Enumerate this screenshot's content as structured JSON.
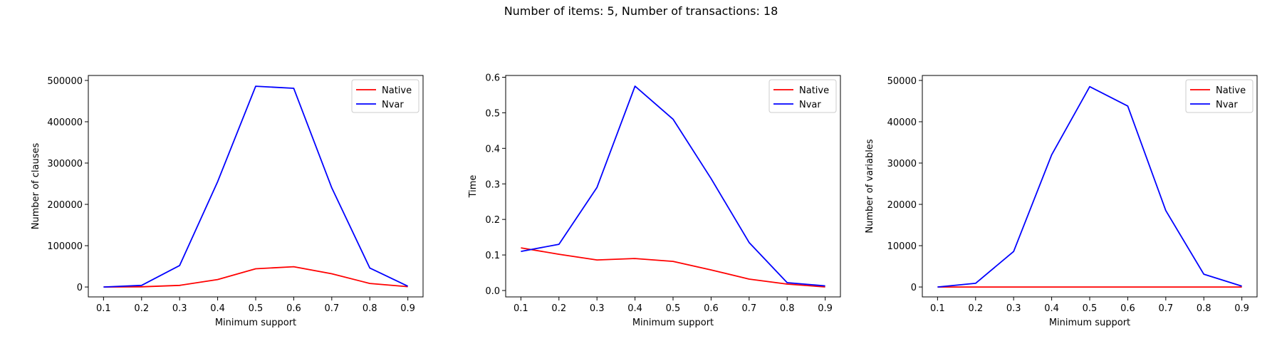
{
  "figure": {
    "title": "Number of items: 5, Number of transactions: 18"
  },
  "chart_data": [
    {
      "type": "line",
      "xlabel": "Minimum support",
      "ylabel": "Number of clauses",
      "x": [
        0.1,
        0.2,
        0.3,
        0.4,
        0.5,
        0.6,
        0.7,
        0.8,
        0.9
      ],
      "xticks": [
        "0.1",
        "0.2",
        "0.3",
        "0.4",
        "0.5",
        "0.6",
        "0.7",
        "0.8",
        "0.9"
      ],
      "yticks": [
        "0",
        "100000",
        "200000",
        "300000",
        "400000",
        "500000"
      ],
      "ytick_values": [
        0,
        100000,
        200000,
        300000,
        400000,
        500000
      ],
      "ylim": [
        -24000,
        512000
      ],
      "xlim": [
        0.06,
        0.94
      ],
      "legend": "top-right",
      "series": [
        {
          "name": "Native",
          "color": "#ff0000",
          "values": [
            0,
            500,
            4000,
            18000,
            44000,
            49000,
            32000,
            8500,
            800
          ]
        },
        {
          "name": "Nvar",
          "color": "#0000ff",
          "values": [
            0,
            4000,
            52000,
            255000,
            486000,
            481000,
            240000,
            46000,
            2000
          ]
        }
      ]
    },
    {
      "type": "line",
      "xlabel": "Minimum support",
      "ylabel": "Time",
      "x": [
        0.1,
        0.2,
        0.3,
        0.4,
        0.5,
        0.6,
        0.7,
        0.8,
        0.9
      ],
      "xticks": [
        "0.1",
        "0.2",
        "0.3",
        "0.4",
        "0.5",
        "0.6",
        "0.7",
        "0.8",
        "0.9"
      ],
      "yticks": [
        "0.0",
        "0.1",
        "0.2",
        "0.3",
        "0.4",
        "0.5",
        "0.6"
      ],
      "ytick_values": [
        0,
        0.1,
        0.2,
        0.3,
        0.4,
        0.5,
        0.6
      ],
      "ylim": [
        -0.018,
        0.605
      ],
      "xlim": [
        0.06,
        0.94
      ],
      "legend": "top-right",
      "series": [
        {
          "name": "Native",
          "color": "#ff0000",
          "values": [
            0.12,
            0.102,
            0.086,
            0.09,
            0.082,
            0.058,
            0.032,
            0.018,
            0.01
          ]
        },
        {
          "name": "Nvar",
          "color": "#0000ff",
          "values": [
            0.11,
            0.13,
            0.29,
            0.575,
            0.482,
            0.315,
            0.135,
            0.022,
            0.013
          ]
        }
      ]
    },
    {
      "type": "line",
      "xlabel": "Minimum support",
      "ylabel": "Number of variables",
      "x": [
        0.1,
        0.2,
        0.3,
        0.4,
        0.5,
        0.6,
        0.7,
        0.8,
        0.9
      ],
      "xticks": [
        "0.1",
        "0.2",
        "0.3",
        "0.4",
        "0.5",
        "0.6",
        "0.7",
        "0.8",
        "0.9"
      ],
      "yticks": [
        "0",
        "10000",
        "20000",
        "30000",
        "40000",
        "50000"
      ],
      "ytick_values": [
        0,
        10000,
        20000,
        30000,
        40000,
        50000
      ],
      "ylim": [
        -2400,
        51200
      ],
      "xlim": [
        0.06,
        0.94
      ],
      "legend": "top-right",
      "series": [
        {
          "name": "Native",
          "color": "#ff0000",
          "values": [
            0,
            0,
            0,
            0,
            0,
            0,
            0,
            0,
            0
          ]
        },
        {
          "name": "Nvar",
          "color": "#0000ff",
          "values": [
            0,
            900,
            8600,
            32000,
            48500,
            43800,
            18500,
            3100,
            200
          ]
        }
      ]
    }
  ]
}
